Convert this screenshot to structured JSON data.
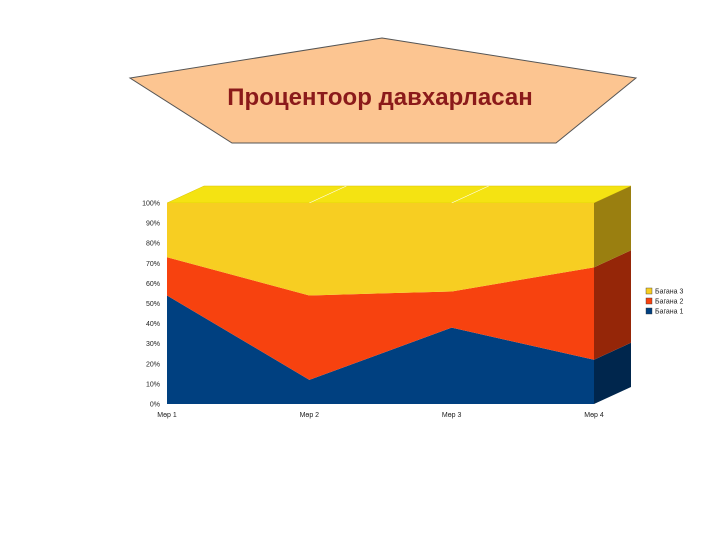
{
  "page": {
    "title": "Процентоор давхарласан"
  },
  "colors": {
    "title_text": "#8b1a1a",
    "title_fill": "#fcc591",
    "series": [
      "#004080",
      "#f7420f",
      "#f7ce22"
    ],
    "series_side": [
      "#00264d",
      "#952608",
      "#9a7f10"
    ],
    "top_face": "#f4e312"
  },
  "chart_data": {
    "type": "area",
    "stacked": "percent",
    "categories": [
      "Мөр 1",
      "Мөр 2",
      "Мөр 3",
      "Мөр 4"
    ],
    "series": [
      {
        "name": "Багана 1",
        "values": [
          54,
          12,
          38,
          22
        ]
      },
      {
        "name": "Багана 2",
        "values": [
          19,
          42,
          18,
          46
        ]
      },
      {
        "name": "Багана 3",
        "values": [
          27,
          46,
          44,
          32
        ]
      }
    ],
    "y_ticks": [
      "0%",
      "10%",
      "20%",
      "30%",
      "40%",
      "50%",
      "60%",
      "70%",
      "80%",
      "90%",
      "100%"
    ],
    "ylim": [
      0,
      100
    ],
    "legend": "right",
    "grid": false
  }
}
